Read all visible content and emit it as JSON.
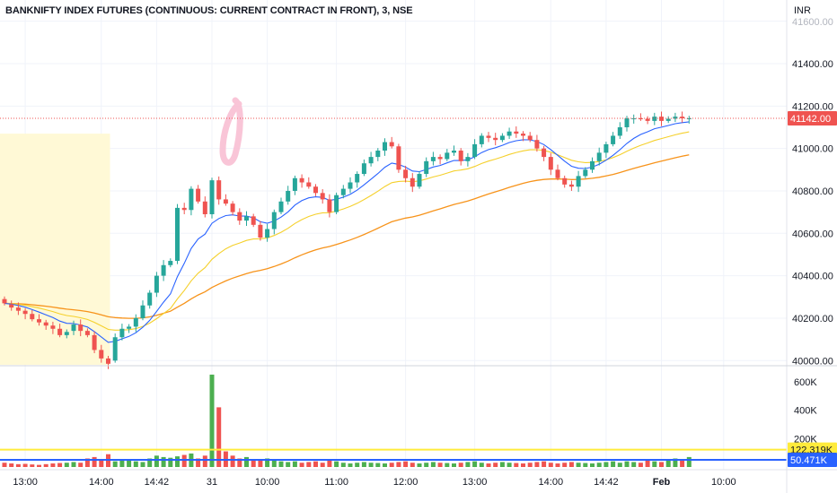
{
  "header": {
    "title": "BANKNIFTY INDEX FUTURES (CONTINUOUS: CURRENT CONTRACT IN FRONT), 3, NSE",
    "currency": "INR"
  },
  "price_axis": {
    "ticks": [
      "41400.00",
      "41200.00",
      "41000.00",
      "40800.00",
      "40600.00",
      "40400.00",
      "40200.00",
      "40000.00"
    ],
    "last_price_label": "41142.00",
    "top_partial_label": "41600.00"
  },
  "volume_axis": {
    "ticks": [
      "600K",
      "400K",
      "200K"
    ],
    "badge_ma_long": "122.319K",
    "badge_ma_short": "50.471K"
  },
  "time_axis": {
    "labels": [
      "13:00",
      "14:00",
      "14:42",
      "31",
      "10:00",
      "11:00",
      "12:00",
      "13:00",
      "14:00",
      "14:42",
      "Feb",
      "10:00"
    ]
  },
  "colors": {
    "up": "#26a69a",
    "down": "#ef5350",
    "vol_up": "#4caf50",
    "vol_down": "#ef5350",
    "ema_fast": "#2962ff",
    "ema_slow": "#f5d02b",
    "ema_long": "#f7931a",
    "session_highlight": "#fff9d6",
    "last_price": "#ef5350",
    "vol_ma_long": "#ffeb3b",
    "vol_ma_short": "#2962ff",
    "drawing": "#f8bbd0"
  },
  "chart_data": {
    "type": "candlestick",
    "title": "BANKNIFTY INDEX FUTURES (CONTINUOUS: CURRENT CONTRACT IN FRONT), 3, NSE",
    "interval": "3",
    "currency": "INR",
    "ylim": [
      39980,
      41700
    ],
    "last_price": 41142,
    "bar_count": 100,
    "session_break_index": 30,
    "x_labels": [
      {
        "i": 3,
        "text": "13:00"
      },
      {
        "i": 14,
        "text": "14:00"
      },
      {
        "i": 22,
        "text": "14:42"
      },
      {
        "i": 30,
        "text": "31"
      },
      {
        "i": 38,
        "text": "10:00"
      },
      {
        "i": 48,
        "text": "11:00"
      },
      {
        "i": 58,
        "text": "12:00"
      },
      {
        "i": 68,
        "text": "13:00"
      },
      {
        "i": 79,
        "text": "14:00"
      },
      {
        "i": 87,
        "text": "14:42"
      },
      {
        "i": 95,
        "text": "Feb"
      },
      {
        "i": 104,
        "text": "10:00"
      }
    ],
    "close": [
      40270,
      40250,
      40235,
      40220,
      40195,
      40180,
      40165,
      40150,
      40120,
      40135,
      40170,
      40140,
      40120,
      40050,
      40010,
      39985,
      40110,
      40150,
      40160,
      40200,
      40260,
      40320,
      40400,
      40450,
      40470,
      40720,
      40710,
      40810,
      40750,
      40690,
      40850,
      40760,
      40740,
      40700,
      40660,
      40680,
      40640,
      40580,
      40620,
      40700,
      40750,
      40800,
      40860,
      40840,
      40820,
      40790,
      40760,
      40700,
      40780,
      40810,
      40840,
      40880,
      40930,
      40960,
      40990,
      41030,
      41010,
      40900,
      40860,
      40820,
      40880,
      40940,
      40960,
      40950,
      40980,
      40990,
      40940,
      40960,
      41020,
      41060,
      41050,
      41040,
      41060,
      41080,
      41070,
      41060,
      41040,
      41000,
      40960,
      40900,
      40860,
      40830,
      40820,
      40870,
      40900,
      40940,
      40980,
      41020,
      41060,
      41100,
      41142,
      41142,
      41140,
      41130,
      41150,
      41130,
      41140,
      41150,
      41142,
      41142
    ],
    "open": [
      40290,
      40265,
      40250,
      40235,
      40220,
      40195,
      40180,
      40165,
      40150,
      40120,
      40140,
      40170,
      40140,
      40120,
      40050,
      40010,
      40000,
      40110,
      40150,
      40160,
      40200,
      40260,
      40320,
      40400,
      40450,
      40470,
      40720,
      40710,
      40810,
      40750,
      40690,
      40850,
      40760,
      40740,
      40700,
      40660,
      40680,
      40640,
      40580,
      40620,
      40700,
      40750,
      40800,
      40860,
      40840,
      40820,
      40790,
      40760,
      40700,
      40780,
      40810,
      40840,
      40880,
      40930,
      40960,
      40990,
      41030,
      41010,
      40900,
      40860,
      40820,
      40880,
      40940,
      40960,
      40950,
      40980,
      40990,
      40940,
      40960,
      41020,
      41060,
      41050,
      41040,
      41060,
      41080,
      41070,
      41060,
      41040,
      41000,
      40960,
      40900,
      40860,
      40830,
      40820,
      40870,
      40900,
      40940,
      40980,
      41020,
      41060,
      41100,
      41142,
      41142,
      41140,
      41130,
      41150,
      41130,
      41140,
      41150,
      41142
    ],
    "volume_k": [
      30,
      25,
      20,
      22,
      18,
      15,
      20,
      25,
      28,
      30,
      35,
      30,
      60,
      70,
      55,
      90,
      40,
      45,
      50,
      40,
      35,
      60,
      80,
      70,
      65,
      75,
      85,
      95,
      60,
      80,
      650,
      420,
      110,
      80,
      60,
      70,
      55,
      50,
      60,
      45,
      40,
      35,
      40,
      30,
      35,
      40,
      30,
      45,
      40,
      30,
      25,
      30,
      35,
      30,
      28,
      25,
      30,
      35,
      40,
      30,
      25,
      30,
      35,
      30,
      28,
      25,
      30,
      35,
      40,
      30,
      25,
      30,
      35,
      30,
      28,
      25,
      30,
      35,
      40,
      30,
      25,
      30,
      35,
      30,
      28,
      25,
      30,
      35,
      40,
      30,
      40,
      35,
      30,
      45,
      40,
      35,
      50,
      60,
      45,
      70
    ],
    "volume_ylim": [
      0,
      700
    ],
    "volume_ma_long": 122.319,
    "volume_ma_short": 50.471
  }
}
